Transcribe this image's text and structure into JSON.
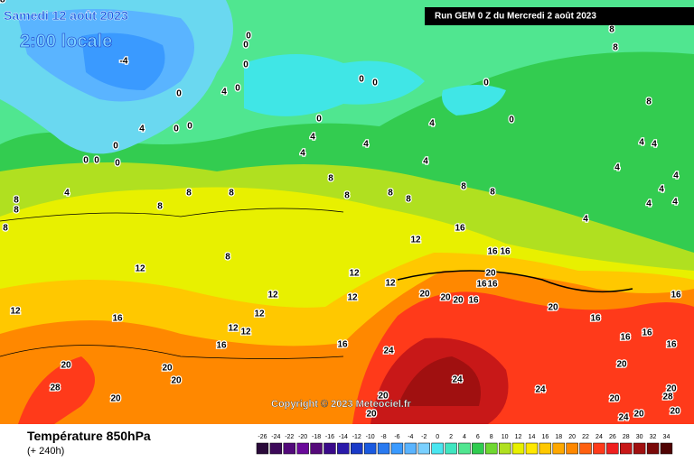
{
  "header": {
    "title": "Samedi 12 août 2023",
    "subtitle": "2:00 locale",
    "run": "Run GEM 0 Z du Mercredi 2 août 2023"
  },
  "footer": {
    "copyright": "Copyright © 2023 Meteociel.fr",
    "variable": "Température 850hPa",
    "lead": "(+ 240h)"
  },
  "colorbar": {
    "values": [
      -26,
      -24,
      -22,
      -20,
      -18,
      -16,
      -14,
      -12,
      -10,
      -8,
      -6,
      -4,
      -2,
      0,
      2,
      4,
      6,
      8,
      10,
      12,
      14,
      16,
      18,
      20,
      22,
      24,
      26,
      28,
      30,
      32,
      34
    ],
    "colors": [
      "#2a0a3a",
      "#3d0a5a",
      "#520a7a",
      "#6a0a9a",
      "#550a7a",
      "#3a0a8a",
      "#2a1aaa",
      "#1a3ac8",
      "#1a5ae0",
      "#2a7af0",
      "#3a9aff",
      "#5ab4ff",
      "#7ad0ff",
      "#4ae6f0",
      "#40e6c0",
      "#50e690",
      "#30cc50",
      "#70d830",
      "#b0e020",
      "#e8f000",
      "#ffe800",
      "#ffc800",
      "#ffa800",
      "#ff8800",
      "#ff6010",
      "#ff3a1a",
      "#f02020",
      "#c81818",
      "#a01010",
      "#7a0808",
      "#500404"
    ]
  },
  "contour_labels": [
    -4,
    0,
    0,
    0,
    0,
    4,
    0,
    0,
    0,
    0,
    0,
    0,
    0,
    0,
    4,
    0,
    0,
    0,
    0,
    4,
    4,
    4,
    4,
    4,
    8,
    8,
    8,
    8,
    8,
    8,
    8,
    8,
    8,
    8,
    8,
    8,
    4,
    8,
    8,
    8,
    4,
    4,
    4,
    4,
    4,
    4,
    4,
    4,
    16,
    12,
    8,
    12,
    12,
    12,
    12,
    12,
    16,
    16,
    20,
    16,
    16,
    20,
    20,
    20,
    16,
    12,
    16,
    20,
    12,
    12,
    12,
    16,
    16,
    16,
    24,
    16,
    16,
    16,
    16,
    20,
    20,
    20,
    20,
    24,
    28,
    20,
    20,
    24,
    20,
    20,
    28,
    20,
    24,
    20,
    20,
    28
  ]
}
